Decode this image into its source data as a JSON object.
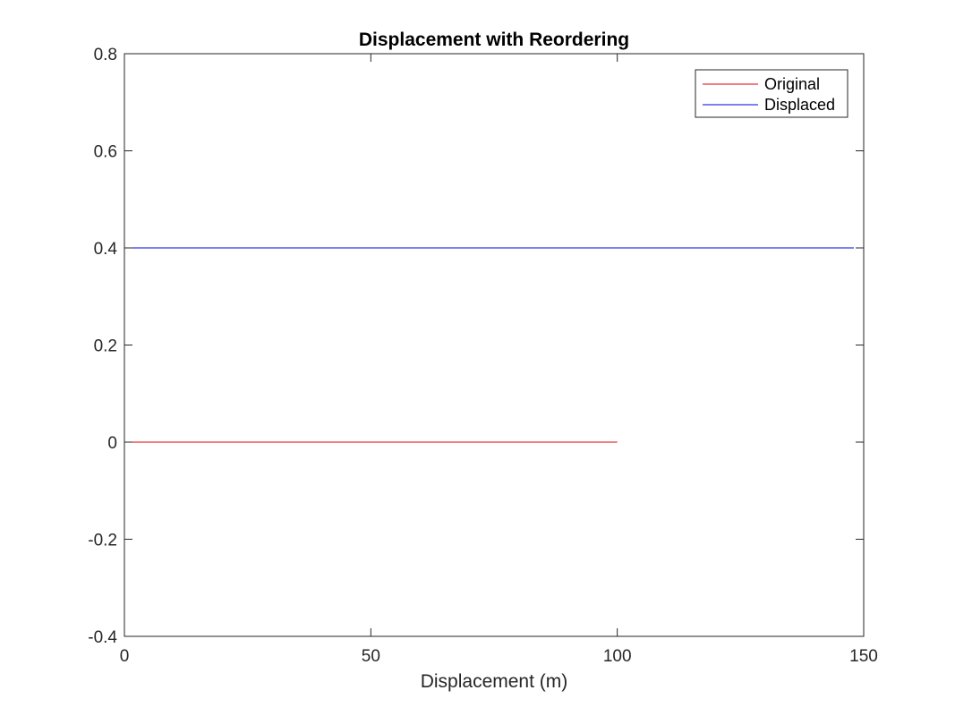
{
  "chart_data": {
    "type": "line",
    "title": "Displacement with Reordering",
    "xlabel": "Displacement (m)",
    "ylabel": "",
    "xlim": [
      0,
      150
    ],
    "ylim": [
      -0.4,
      0.8
    ],
    "xticks": [
      0,
      50,
      100,
      150
    ],
    "xtick_labels": [
      "0",
      "50",
      "100",
      "150"
    ],
    "yticks": [
      -0.4,
      -0.2,
      0,
      0.2,
      0.4,
      0.6,
      0.8
    ],
    "ytick_labels": [
      "-0.4",
      "-0.2",
      "0",
      "0.2",
      "0.4",
      "0.6",
      "0.8"
    ],
    "grid": false,
    "legend_position": "top-right",
    "series": [
      {
        "name": "Original",
        "color": "#e00000",
        "x": [
          0,
          100
        ],
        "y": [
          0,
          0
        ]
      },
      {
        "name": "Displaced",
        "color": "#0000e0",
        "x": [
          0,
          148
        ],
        "y": [
          0.4,
          0.4
        ]
      }
    ]
  }
}
